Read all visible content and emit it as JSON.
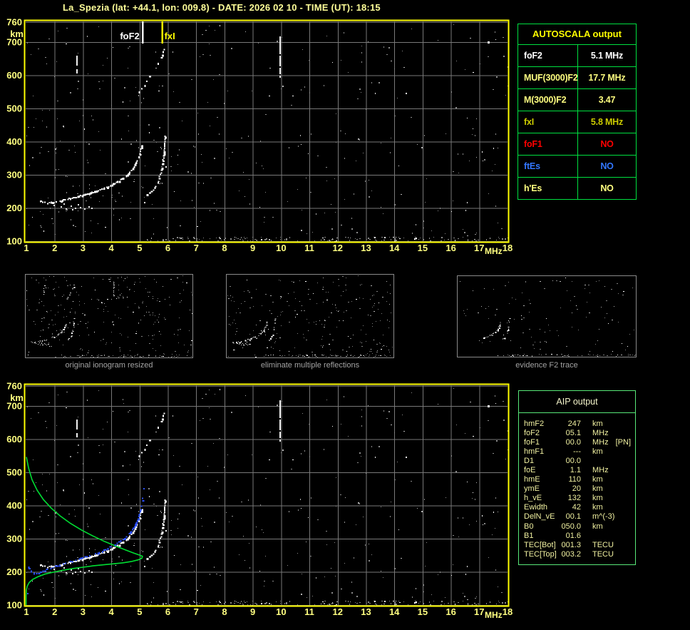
{
  "title": "La_Spezia (lat: +44.1, lon: 009.8) - DATE: 2026 02 10 - TIME (UT): 18:15",
  "colors": {
    "background": "#000000",
    "plot_border": "#ffff00",
    "grid": "#787878",
    "axis_labels": "#ffff80",
    "title_text": "#ffff99",
    "autoscala_border": "#00e040",
    "aip_border": "#58e878",
    "aip_text": "#f0f0a0",
    "profile_green": "#00dd33",
    "restored_blue": "#2b50ff",
    "noise_gray": "#8a8a8a",
    "caption_gray": "#a3a3a3"
  },
  "chart_data": {
    "type": "scatter",
    "description": "Ionosonde ionogram: virtual height (km) vs sounding frequency (MHz). White dots = received echo trace, green curve = electron density profile (AIP), blue marks = restored trace.",
    "x_axis": {
      "label": "MHz",
      "range": [
        1,
        18
      ],
      "ticks": [
        1,
        2,
        3,
        4,
        5,
        6,
        7,
        8,
        9,
        10,
        11,
        12,
        13,
        14,
        15,
        16,
        17,
        18
      ]
    },
    "y_axis": {
      "label": "km",
      "range": [
        100,
        760
      ],
      "ticks": [
        760,
        700,
        600,
        500,
        400,
        300,
        200,
        100
      ]
    },
    "markers": [
      {
        "name": "foF2",
        "freq_mhz": 5.1,
        "color": "#ffffff"
      },
      {
        "name": "fxI",
        "freq_mhz": 5.8,
        "color": "#ffff00"
      }
    ],
    "series": {
      "echo_trace_o": [
        [
          1.5,
          222
        ],
        [
          1.62,
          218
        ],
        [
          1.75,
          216
        ],
        [
          1.9,
          218
        ],
        [
          2.05,
          221
        ],
        [
          2.2,
          224
        ],
        [
          2.35,
          227
        ],
        [
          2.5,
          230
        ],
        [
          2.65,
          233
        ],
        [
          2.8,
          236
        ],
        [
          2.95,
          240
        ],
        [
          3.1,
          243
        ],
        [
          3.25,
          247
        ],
        [
          3.4,
          251
        ],
        [
          3.55,
          255
        ],
        [
          3.7,
          260
        ],
        [
          3.85,
          265
        ],
        [
          4.0,
          271
        ],
        [
          4.15,
          278
        ],
        [
          4.3,
          286
        ],
        [
          4.45,
          295
        ],
        [
          4.6,
          306
        ],
        [
          4.72,
          318
        ],
        [
          4.82,
          331
        ],
        [
          4.9,
          345
        ],
        [
          4.97,
          361
        ],
        [
          5.02,
          378
        ],
        [
          5.06,
          394
        ]
      ],
      "echo_trace_x": [
        [
          5.25,
          242
        ],
        [
          5.35,
          249
        ],
        [
          5.45,
          257
        ],
        [
          5.55,
          267
        ],
        [
          5.62,
          279
        ],
        [
          5.68,
          293
        ],
        [
          5.73,
          309
        ],
        [
          5.77,
          327
        ],
        [
          5.81,
          348
        ],
        [
          5.84,
          372
        ],
        [
          5.86,
          398
        ],
        [
          5.88,
          424
        ]
      ],
      "second_hop_echo": [
        [
          4.95,
          550
        ],
        [
          5.05,
          560
        ],
        [
          5.15,
          571
        ],
        [
          5.25,
          583
        ],
        [
          5.35,
          596
        ],
        [
          5.45,
          609
        ],
        [
          5.55,
          623
        ],
        [
          5.65,
          638
        ],
        [
          5.74,
          654
        ],
        [
          5.83,
          671
        ],
        [
          5.9,
          688
        ]
      ],
      "e_region_scatter": [
        [
          2.2,
          205
        ],
        [
          2.38,
          199
        ],
        [
          2.55,
          208
        ],
        [
          2.72,
          201
        ],
        [
          2.9,
          204
        ],
        [
          3.05,
          199
        ],
        [
          3.18,
          205
        ],
        [
          2.3,
          213
        ],
        [
          2.82,
          211
        ],
        [
          3.3,
          202
        ],
        [
          1.95,
          210
        ],
        [
          2.6,
          196
        ]
      ],
      "vertical_streaks": [
        {
          "f": 2.77,
          "h_from": 612,
          "h_to": 662
        },
        {
          "f": 9.95,
          "h_from": 598,
          "h_to": 722
        }
      ],
      "bright_spots": [
        [
          17.33,
          700
        ]
      ],
      "profile_green": [
        [
          1.0,
          546
        ],
        [
          1.08,
          512
        ],
        [
          1.2,
          478
        ],
        [
          1.38,
          446
        ],
        [
          1.6,
          418
        ],
        [
          1.88,
          392
        ],
        [
          2.2,
          368
        ],
        [
          2.56,
          346
        ],
        [
          2.95,
          326
        ],
        [
          3.35,
          308
        ],
        [
          3.75,
          292
        ],
        [
          4.15,
          278
        ],
        [
          4.5,
          266
        ],
        [
          4.78,
          257
        ],
        [
          4.98,
          251
        ],
        [
          5.1,
          247
        ],
        [
          5.08,
          241
        ],
        [
          4.95,
          236
        ],
        [
          4.7,
          231
        ],
        [
          4.4,
          227
        ],
        [
          4.05,
          224
        ],
        [
          3.7,
          221
        ],
        [
          3.35,
          218
        ],
        [
          3.0,
          214
        ],
        [
          2.65,
          210
        ],
        [
          2.3,
          205
        ],
        [
          1.95,
          199
        ],
        [
          1.65,
          193
        ],
        [
          1.4,
          185
        ],
        [
          1.22,
          177
        ],
        [
          1.1,
          168
        ],
        [
          1.03,
          157
        ],
        [
          1.0,
          145
        ],
        [
          0.99,
          128
        ],
        [
          0.99,
          100
        ]
      ],
      "restored_trace_blue": [
        [
          1.05,
          216
        ],
        [
          1.1,
          210
        ],
        [
          1.17,
          204
        ],
        [
          1.25,
          199
        ],
        [
          1.33,
          196
        ],
        [
          1.42,
          198
        ],
        [
          1.55,
          203
        ],
        [
          1.7,
          208
        ],
        [
          1.85,
          213
        ],
        [
          2.0,
          218
        ],
        [
          2.15,
          222
        ],
        [
          2.3,
          226
        ],
        [
          2.45,
          230
        ],
        [
          2.6,
          234
        ],
        [
          2.75,
          238
        ],
        [
          2.9,
          242
        ],
        [
          3.05,
          246
        ],
        [
          3.2,
          250
        ],
        [
          3.35,
          254
        ],
        [
          3.5,
          259
        ],
        [
          3.65,
          264
        ],
        [
          3.8,
          270
        ],
        [
          3.95,
          276
        ],
        [
          4.1,
          283
        ],
        [
          4.25,
          291
        ],
        [
          4.4,
          300
        ],
        [
          4.55,
          311
        ],
        [
          4.68,
          323
        ],
        [
          4.8,
          337
        ],
        [
          4.89,
          352
        ],
        [
          4.96,
          368
        ],
        [
          5.01,
          384
        ],
        [
          5.05,
          400
        ],
        [
          5.08,
          415
        ],
        [
          5.1,
          430
        ]
      ],
      "stray_blue": [
        [
          1.02,
          137
        ],
        [
          5.12,
          453
        ]
      ]
    }
  },
  "autoscala": {
    "header": "AUTOSCALA output",
    "rows": [
      {
        "label": "foF2",
        "value": "5.1 MHz",
        "color": "#ffffff"
      },
      {
        "label": "MUF(3000)F2",
        "value": "17.7 MHz",
        "color": "#ffff80"
      },
      {
        "label": "M(3000)F2",
        "value": "3.47",
        "color": "#ffff80"
      },
      {
        "label": "fxI",
        "value": "5.8 MHz",
        "color": "#cccc00"
      },
      {
        "label": "foF1",
        "value": "NO",
        "color": "#ff0000"
      },
      {
        "label": "ftEs",
        "value": "NO",
        "color": "#3377ff"
      },
      {
        "label": "h'Es",
        "value": "NO",
        "color": "#ffff80"
      }
    ]
  },
  "thumbnails": [
    {
      "caption": "original ionogram resized"
    },
    {
      "caption": "eliminate multiple reflections"
    },
    {
      "caption": "evidence F2 trace"
    }
  ],
  "aip": {
    "header": "AIP output",
    "rows": [
      {
        "label": "hmF2",
        "value": "247",
        "unit": "km"
      },
      {
        "label": "foF2",
        "value": "05.1",
        "unit": "MHz"
      },
      {
        "label": "foF1",
        "value": "00.0",
        "unit": "MHz",
        "note": "[PN]"
      },
      {
        "label": "hmF1",
        "value": "---",
        "unit": "km"
      },
      {
        "label": "D1",
        "value": "00.0",
        "unit": ""
      },
      {
        "label": "foE",
        "value": "1.1",
        "unit": "MHz"
      },
      {
        "label": "hmE",
        "value": "110",
        "unit": "km"
      },
      {
        "label": "ymE",
        "value": "20",
        "unit": "km"
      },
      {
        "label": "h_vE",
        "value": "132",
        "unit": "km"
      },
      {
        "label": "Ewidth",
        "value": "42",
        "unit": "km"
      },
      {
        "label": "DelN_vE",
        "value": "00.1",
        "unit": "m^(-3)"
      },
      {
        "label": "B0",
        "value": "050.0",
        "unit": "km"
      },
      {
        "label": "B1",
        "value": "01.6",
        "unit": ""
      },
      {
        "label": "TEC[Bot]",
        "value": "001.3",
        "unit": "TECU"
      },
      {
        "label": "TEC[Top]",
        "value": "003.2",
        "unit": "TECU"
      }
    ]
  }
}
